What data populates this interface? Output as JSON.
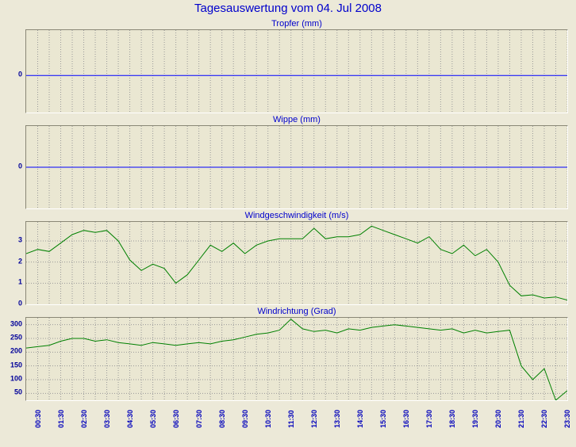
{
  "page": {
    "title": "Tagesauswertung vom 04. Jul 2008"
  },
  "colors": {
    "background": "#ece9d8",
    "plot_background": "#eae7d2",
    "grid": "#999999",
    "title_blue": "#0000cc",
    "axis_label_blue": "#0000bb",
    "flat_line_blue": "#0000ff",
    "wind_line_green": "#008000"
  },
  "n_points": 48,
  "x_start": "00:00",
  "x_step_minutes": 30,
  "x_labels": [
    "00:30",
    "01:30",
    "02:30",
    "03:30",
    "04:30",
    "05:30",
    "06:30",
    "07:30",
    "08:30",
    "09:30",
    "10:30",
    "11:30",
    "12:30",
    "13:30",
    "14:30",
    "15:30",
    "16:30",
    "17:30",
    "18:30",
    "19:30",
    "20:30",
    "21:30",
    "22:30",
    "23:30"
  ],
  "chart_data": [
    {
      "type": "line",
      "title": "Tropfer (mm)",
      "color": "#0000ff",
      "ylim": [
        -0.9,
        1.1
      ],
      "yticks": [
        0
      ],
      "grid_h": false,
      "values": [
        0,
        0,
        0,
        0,
        0,
        0,
        0,
        0,
        0,
        0,
        0,
        0,
        0,
        0,
        0,
        0,
        0,
        0,
        0,
        0,
        0,
        0,
        0,
        0,
        0,
        0,
        0,
        0,
        0,
        0,
        0,
        0,
        0,
        0,
        0,
        0,
        0,
        0,
        0,
        0,
        0,
        0,
        0,
        0,
        0,
        0,
        0,
        0
      ]
    },
    {
      "type": "line",
      "title": "Wippe (mm)",
      "color": "#0000ff",
      "ylim": [
        -1,
        1
      ],
      "yticks": [
        0
      ],
      "grid_h": false,
      "values": [
        0,
        0,
        0,
        0,
        0,
        0,
        0,
        0,
        0,
        0,
        0,
        0,
        0,
        0,
        0,
        0,
        0,
        0,
        0,
        0,
        0,
        0,
        0,
        0,
        0,
        0,
        0,
        0,
        0,
        0,
        0,
        0,
        0,
        0,
        0,
        0,
        0,
        0,
        0,
        0,
        0,
        0,
        0,
        0,
        0,
        0,
        0,
        0
      ]
    },
    {
      "type": "line",
      "title": "Windgeschwindigkeit (m/s)",
      "color": "#008000",
      "ylim": [
        0,
        3.9
      ],
      "yticks": [
        0,
        1,
        2,
        3
      ],
      "grid_h": true,
      "values": [
        2.4,
        2.6,
        2.5,
        2.9,
        3.3,
        3.5,
        3.4,
        3.5,
        3.0,
        2.1,
        1.6,
        1.9,
        1.7,
        1.0,
        1.4,
        2.1,
        2.8,
        2.5,
        2.9,
        2.4,
        2.8,
        3.0,
        3.1,
        3.1,
        3.1,
        3.6,
        3.1,
        3.2,
        3.2,
        3.3,
        3.7,
        3.5,
        3.3,
        3.1,
        2.9,
        3.2,
        2.6,
        2.4,
        2.8,
        2.3,
        2.6,
        2.0,
        0.9,
        0.4,
        0.45,
        0.3,
        0.35,
        0.2
      ]
    },
    {
      "type": "line",
      "title": "Windrichtung (Grad)",
      "color": "#008000",
      "ylim": [
        25,
        325
      ],
      "yticks": [
        50,
        100,
        150,
        200,
        250,
        300
      ],
      "grid_h": true,
      "values": [
        215,
        220,
        225,
        240,
        250,
        250,
        240,
        245,
        235,
        230,
        225,
        235,
        230,
        225,
        230,
        235,
        230,
        240,
        245,
        255,
        265,
        270,
        280,
        320,
        285,
        275,
        280,
        270,
        285,
        280,
        290,
        295,
        300,
        295,
        290,
        285,
        280,
        285,
        270,
        280,
        270,
        275,
        280,
        150,
        100,
        140,
        25,
        60
      ]
    }
  ]
}
